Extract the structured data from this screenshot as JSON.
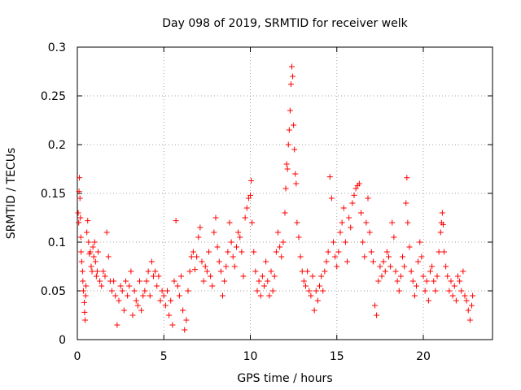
{
  "chart_data": {
    "type": "scatter",
    "title": "Day 098 of 2019, SRMTID for receiver welk",
    "xlabel": "GPS time / hours",
    "ylabel": "SRMTID / TECUs",
    "xlim": [
      0,
      24
    ],
    "ylim": [
      0,
      0.3
    ],
    "xticks": [
      0,
      5,
      10,
      15,
      20
    ],
    "xtick_labels": [
      "0",
      "5",
      "10",
      "15",
      "20"
    ],
    "yticks": [
      0,
      0.05,
      0.1,
      0.15,
      0.2,
      0.25,
      0.3
    ],
    "ytick_labels": [
      "0",
      "0.05",
      "0.1",
      "0.15",
      "0.2",
      "0.25",
      "0.3"
    ],
    "grid": true,
    "marker": "+",
    "marker_color": "#ff0000",
    "series": [
      {
        "name": "SRMTID",
        "points": [
          [
            0.05,
            0.13
          ],
          [
            0.08,
            0.12
          ],
          [
            0.1,
            0.152
          ],
          [
            0.12,
            0.166
          ],
          [
            0.15,
            0.145
          ],
          [
            0.18,
            0.125
          ],
          [
            0.2,
            0.105
          ],
          [
            0.22,
            0.09
          ],
          [
            0.25,
            0.08
          ],
          [
            0.3,
            0.07
          ],
          [
            0.32,
            0.06
          ],
          [
            0.35,
            0.05
          ],
          [
            0.4,
            0.038
          ],
          [
            0.42,
            0.028
          ],
          [
            0.45,
            0.02
          ],
          [
            0.48,
            0.045
          ],
          [
            0.5,
            0.055
          ],
          [
            0.55,
            0.11
          ],
          [
            0.6,
            0.122
          ],
          [
            0.65,
            0.1
          ],
          [
            0.7,
            0.088
          ],
          [
            0.75,
            0.09
          ],
          [
            0.8,
            0.075
          ],
          [
            0.85,
            0.07
          ],
          [
            0.9,
            0.095
          ],
          [
            0.95,
            0.085
          ],
          [
            1.0,
            0.1
          ],
          [
            1.05,
            0.08
          ],
          [
            1.1,
            0.065
          ],
          [
            1.15,
            0.07
          ],
          [
            1.2,
            0.09
          ],
          [
            1.3,
            0.06
          ],
          [
            1.4,
            0.055
          ],
          [
            1.5,
            0.07
          ],
          [
            1.6,
            0.065
          ],
          [
            1.7,
            0.11
          ],
          [
            1.8,
            0.085
          ],
          [
            1.9,
            0.06
          ],
          [
            2.0,
            0.05
          ],
          [
            2.1,
            0.06
          ],
          [
            2.2,
            0.045
          ],
          [
            2.3,
            0.015
          ],
          [
            2.4,
            0.04
          ],
          [
            2.5,
            0.055
          ],
          [
            2.6,
            0.05
          ],
          [
            2.7,
            0.03
          ],
          [
            2.8,
            0.06
          ],
          [
            2.9,
            0.045
          ],
          [
            3.0,
            0.055
          ],
          [
            3.1,
            0.07
          ],
          [
            3.2,
            0.025
          ],
          [
            3.3,
            0.05
          ],
          [
            3.4,
            0.04
          ],
          [
            3.5,
            0.035
          ],
          [
            3.6,
            0.06
          ],
          [
            3.7,
            0.03
          ],
          [
            3.8,
            0.045
          ],
          [
            3.9,
            0.05
          ],
          [
            4.0,
            0.06
          ],
          [
            4.1,
            0.07
          ],
          [
            4.2,
            0.045
          ],
          [
            4.3,
            0.08
          ],
          [
            4.4,
            0.065
          ],
          [
            4.5,
            0.07
          ],
          [
            4.6,
            0.055
          ],
          [
            4.7,
            0.065
          ],
          [
            4.8,
            0.04
          ],
          [
            4.9,
            0.05
          ],
          [
            5.0,
            0.045
          ],
          [
            5.1,
            0.035
          ],
          [
            5.2,
            0.05
          ],
          [
            5.3,
            0.025
          ],
          [
            5.4,
            0.04
          ],
          [
            5.5,
            0.015
          ],
          [
            5.6,
            0.06
          ],
          [
            5.7,
            0.122
          ],
          [
            5.8,
            0.055
          ],
          [
            5.9,
            0.045
          ],
          [
            6.0,
            0.065
          ],
          [
            6.1,
            0.03
          ],
          [
            6.2,
            0.01
          ],
          [
            6.3,
            0.02
          ],
          [
            6.4,
            0.05
          ],
          [
            6.5,
            0.07
          ],
          [
            6.6,
            0.085
          ],
          [
            6.7,
            0.09
          ],
          [
            6.8,
            0.072
          ],
          [
            6.9,
            0.085
          ],
          [
            7.0,
            0.105
          ],
          [
            7.1,
            0.115
          ],
          [
            7.2,
            0.08
          ],
          [
            7.3,
            0.06
          ],
          [
            7.4,
            0.075
          ],
          [
            7.5,
            0.07
          ],
          [
            7.6,
            0.09
          ],
          [
            7.7,
            0.065
          ],
          [
            7.8,
            0.055
          ],
          [
            7.9,
            0.11
          ],
          [
            8.0,
            0.125
          ],
          [
            8.1,
            0.095
          ],
          [
            8.2,
            0.08
          ],
          [
            8.3,
            0.07
          ],
          [
            8.4,
            0.045
          ],
          [
            8.5,
            0.06
          ],
          [
            8.6,
            0.075
          ],
          [
            8.7,
            0.09
          ],
          [
            8.8,
            0.12
          ],
          [
            8.9,
            0.1
          ],
          [
            9.0,
            0.085
          ],
          [
            9.1,
            0.075
          ],
          [
            9.2,
            0.095
          ],
          [
            9.3,
            0.11
          ],
          [
            9.4,
            0.105
          ],
          [
            9.5,
            0.09
          ],
          [
            9.6,
            0.065
          ],
          [
            9.7,
            0.125
          ],
          [
            9.8,
            0.135
          ],
          [
            9.9,
            0.145
          ],
          [
            10.0,
            0.148
          ],
          [
            10.05,
            0.163
          ],
          [
            10.1,
            0.12
          ],
          [
            10.2,
            0.09
          ],
          [
            10.3,
            0.07
          ],
          [
            10.4,
            0.05
          ],
          [
            10.5,
            0.06
          ],
          [
            10.6,
            0.045
          ],
          [
            10.7,
            0.065
          ],
          [
            10.8,
            0.055
          ],
          [
            10.9,
            0.08
          ],
          [
            11.0,
            0.06
          ],
          [
            11.1,
            0.045
          ],
          [
            11.2,
            0.07
          ],
          [
            11.3,
            0.05
          ],
          [
            11.4,
            0.065
          ],
          [
            11.5,
            0.09
          ],
          [
            11.6,
            0.11
          ],
          [
            11.7,
            0.095
          ],
          [
            11.8,
            0.085
          ],
          [
            11.9,
            0.1
          ],
          [
            12.0,
            0.13
          ],
          [
            12.05,
            0.155
          ],
          [
            12.1,
            0.18
          ],
          [
            12.15,
            0.175
          ],
          [
            12.2,
            0.2
          ],
          [
            12.25,
            0.215
          ],
          [
            12.3,
            0.235
          ],
          [
            12.35,
            0.262
          ],
          [
            12.4,
            0.28
          ],
          [
            12.45,
            0.27
          ],
          [
            12.5,
            0.22
          ],
          [
            12.55,
            0.195
          ],
          [
            12.6,
            0.17
          ],
          [
            12.65,
            0.16
          ],
          [
            12.7,
            0.12
          ],
          [
            12.8,
            0.105
          ],
          [
            12.9,
            0.085
          ],
          [
            13.0,
            0.07
          ],
          [
            13.1,
            0.06
          ],
          [
            13.2,
            0.055
          ],
          [
            13.3,
            0.07
          ],
          [
            13.4,
            0.05
          ],
          [
            13.5,
            0.045
          ],
          [
            13.6,
            0.065
          ],
          [
            13.7,
            0.03
          ],
          [
            13.8,
            0.05
          ],
          [
            13.9,
            0.04
          ],
          [
            14.0,
            0.055
          ],
          [
            14.1,
            0.065
          ],
          [
            14.2,
            0.05
          ],
          [
            14.3,
            0.07
          ],
          [
            14.4,
            0.08
          ],
          [
            14.5,
            0.09
          ],
          [
            14.6,
            0.167
          ],
          [
            14.7,
            0.145
          ],
          [
            14.8,
            0.1
          ],
          [
            14.9,
            0.085
          ],
          [
            15.0,
            0.075
          ],
          [
            15.1,
            0.09
          ],
          [
            15.2,
            0.11
          ],
          [
            15.3,
            0.12
          ],
          [
            15.4,
            0.135
          ],
          [
            15.5,
            0.1
          ],
          [
            15.6,
            0.08
          ],
          [
            15.7,
            0.125
          ],
          [
            15.8,
            0.115
          ],
          [
            15.9,
            0.14
          ],
          [
            16.0,
            0.148
          ],
          [
            16.1,
            0.155
          ],
          [
            16.2,
            0.158
          ],
          [
            16.3,
            0.16
          ],
          [
            16.4,
            0.13
          ],
          [
            16.5,
            0.1
          ],
          [
            16.6,
            0.085
          ],
          [
            16.7,
            0.12
          ],
          [
            16.8,
            0.145
          ],
          [
            16.9,
            0.11
          ],
          [
            17.0,
            0.09
          ],
          [
            17.1,
            0.08
          ],
          [
            17.2,
            0.035
          ],
          [
            17.3,
            0.025
          ],
          [
            17.4,
            0.06
          ],
          [
            17.5,
            0.075
          ],
          [
            17.6,
            0.065
          ],
          [
            17.7,
            0.08
          ],
          [
            17.8,
            0.07
          ],
          [
            17.9,
            0.09
          ],
          [
            18.0,
            0.085
          ],
          [
            18.1,
            0.075
          ],
          [
            18.2,
            0.12
          ],
          [
            18.3,
            0.105
          ],
          [
            18.4,
            0.07
          ],
          [
            18.5,
            0.06
          ],
          [
            18.6,
            0.05
          ],
          [
            18.7,
            0.065
          ],
          [
            18.8,
            0.085
          ],
          [
            18.9,
            0.075
          ],
          [
            19.0,
            0.14
          ],
          [
            19.05,
            0.166
          ],
          [
            19.1,
            0.12
          ],
          [
            19.2,
            0.095
          ],
          [
            19.3,
            0.07
          ],
          [
            19.4,
            0.06
          ],
          [
            19.5,
            0.045
          ],
          [
            19.6,
            0.055
          ],
          [
            19.7,
            0.08
          ],
          [
            19.8,
            0.1
          ],
          [
            19.9,
            0.085
          ],
          [
            20.0,
            0.065
          ],
          [
            20.1,
            0.05
          ],
          [
            20.2,
            0.06
          ],
          [
            20.3,
            0.04
          ],
          [
            20.4,
            0.07
          ],
          [
            20.5,
            0.075
          ],
          [
            20.6,
            0.06
          ],
          [
            20.7,
            0.05
          ],
          [
            20.8,
            0.065
          ],
          [
            20.9,
            0.09
          ],
          [
            21.0,
            0.11
          ],
          [
            21.05,
            0.12
          ],
          [
            21.1,
            0.13
          ],
          [
            21.15,
            0.118
          ],
          [
            21.2,
            0.09
          ],
          [
            21.3,
            0.075
          ],
          [
            21.4,
            0.065
          ],
          [
            21.5,
            0.05
          ],
          [
            21.6,
            0.06
          ],
          [
            21.7,
            0.045
          ],
          [
            21.8,
            0.055
          ],
          [
            21.9,
            0.04
          ],
          [
            22.0,
            0.065
          ],
          [
            22.1,
            0.06
          ],
          [
            22.2,
            0.05
          ],
          [
            22.3,
            0.07
          ],
          [
            22.4,
            0.045
          ],
          [
            22.5,
            0.04
          ],
          [
            22.6,
            0.03
          ],
          [
            22.7,
            0.02
          ],
          [
            22.8,
            0.035
          ],
          [
            22.85,
            0.045
          ]
        ]
      }
    ]
  }
}
